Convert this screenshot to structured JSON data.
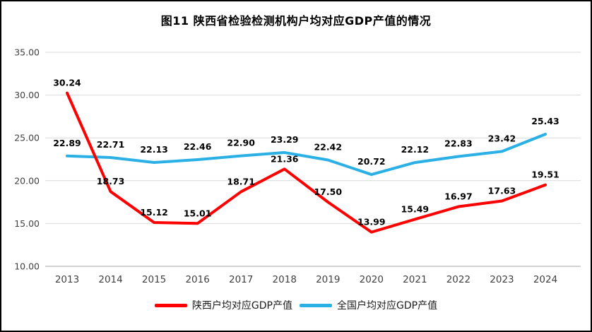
{
  "title": "图11 陕西省检验检测机构户均对应GDP产值的情况",
  "colors": {
    "shaanxi": "#fe0000",
    "national": "#2ab0e4",
    "grid": "#d9d9d9",
    "axis_line": "#a6a6a6",
    "tick_text": "#404040",
    "label_text": "#000000"
  },
  "chart_data": {
    "type": "line",
    "x": [
      "2013",
      "2014",
      "2015",
      "2016",
      "2017",
      "2018",
      "2019",
      "2020",
      "2021",
      "2022",
      "2023",
      "2024"
    ],
    "series": [
      {
        "name": "陕西户均对应GDP产值",
        "color_key": "shaanxi",
        "values": [
          30.24,
          18.73,
          15.12,
          15.01,
          18.71,
          21.36,
          17.5,
          13.99,
          15.49,
          16.97,
          17.63,
          19.51
        ]
      },
      {
        "name": "全国户均对应GDP产值",
        "color_key": "national",
        "values": [
          22.89,
          22.71,
          22.13,
          22.46,
          22.9,
          23.29,
          22.42,
          20.72,
          22.12,
          22.83,
          23.42,
          25.43
        ]
      }
    ],
    "ylim": [
      10,
      35
    ],
    "yticks": [
      10,
      15,
      20,
      25,
      30,
      35
    ],
    "grid": true,
    "legend_position": "bottom"
  }
}
